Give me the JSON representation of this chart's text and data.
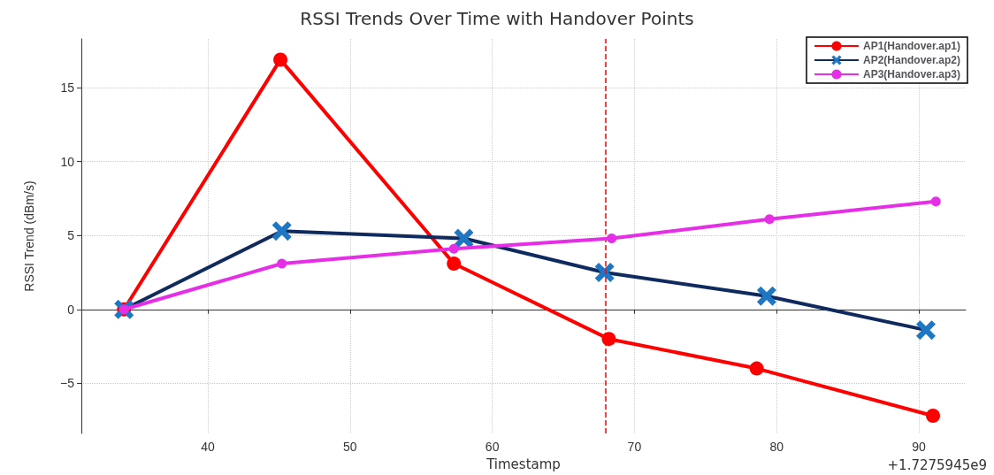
{
  "chart_data": {
    "type": "line",
    "title": "RSSI Trends Over Time with Handover Points",
    "xlabel": "Timestamp",
    "ylabel": "RSSI Trend (dBm/s)",
    "annotations": [
      "+1.7275945e9"
    ],
    "xlim": [
      31.1,
      93.3
    ],
    "xticks": [
      40,
      50,
      60,
      70,
      80,
      90
    ],
    "ylim": [
      -8.4,
      18.3
    ],
    "yticks": [
      {
        "value": -5,
        "label": "−5"
      },
      0,
      5,
      10,
      15
    ],
    "grid": true,
    "legend": "top right",
    "line_style": "solid",
    "ref_lines": [
      {
        "axis": "x",
        "value": 68,
        "color": "#ff0000",
        "line_style": "dashed"
      }
    ],
    "series": [
      {
        "name": "AP1(Handover.ap1)",
        "color": "#ff0000",
        "marker": "circle",
        "x": [
          34.1,
          45.1,
          57.3,
          68.2,
          78.6,
          91.0
        ],
        "values": [
          0,
          16.9,
          3.1,
          -2.0,
          -4.0,
          -7.2
        ]
      },
      {
        "name": "AP2(Handover.ap2)",
        "color": "#0f2a5e",
        "marker": "cross",
        "x": [
          34.1,
          45.2,
          58.0,
          67.9,
          79.3,
          90.5
        ],
        "values": [
          0,
          5.3,
          4.8,
          2.5,
          0.9,
          -1.4
        ]
      },
      {
        "name": "AP3(Handover.ap3)",
        "color": "#e52ee5",
        "marker": "circle",
        "x": [
          34.1,
          45.2,
          57.3,
          68.4,
          79.5,
          91.2
        ],
        "values": [
          0,
          3.1,
          4.1,
          4.8,
          6.1,
          7.3
        ]
      }
    ]
  }
}
